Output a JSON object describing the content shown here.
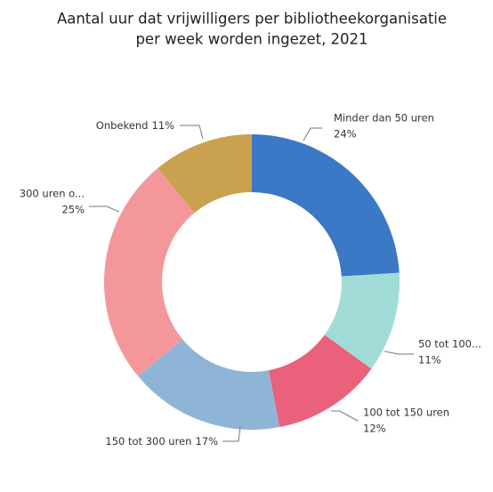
{
  "chart_data": {
    "type": "donut",
    "title": [
      "Aantal uur dat vrijwilligers per bibliotheekorganisatie",
      "per week worden ingezet, 2021"
    ],
    "categories": [
      "Minder dan 50 uren",
      "50 tot 100...",
      "100 tot 150 uren",
      "150 tot 300 uren",
      "300 uren o...",
      "Onbekend"
    ],
    "values": [
      24,
      11,
      12,
      17,
      25,
      11
    ],
    "value_labels": [
      "24%",
      "11%",
      "12%",
      "17%",
      "25%",
      "11%"
    ],
    "colors": [
      "#3b78c6",
      "#a1dcd8",
      "#e9617b",
      "#8fb5d6",
      "#f4979b",
      "#c9a14f"
    ]
  }
}
